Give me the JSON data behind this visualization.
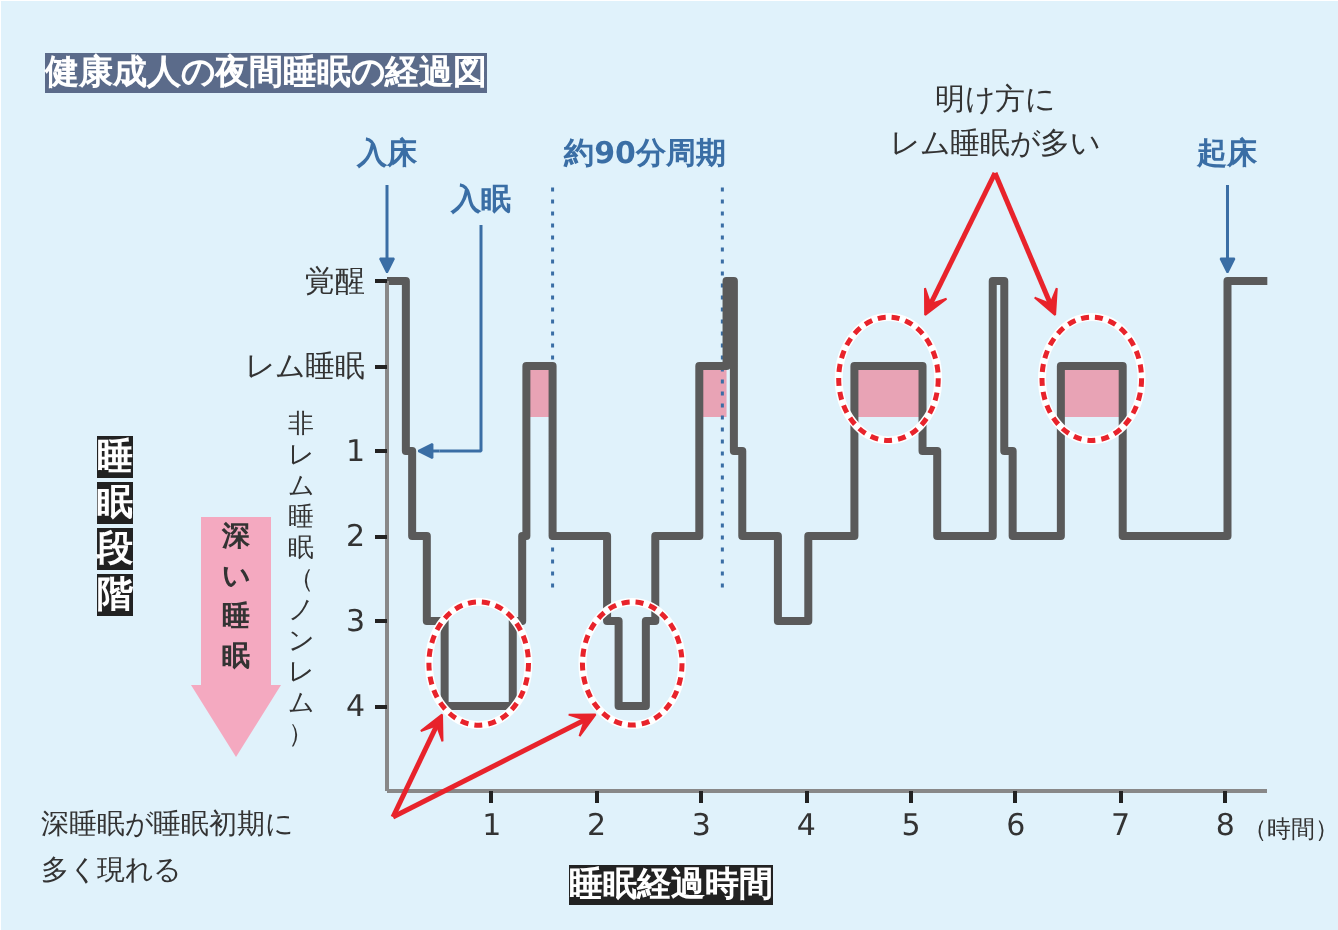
{
  "chart_data": {
    "type": "step",
    "title": "健康成人の夜間睡眠の経過図",
    "xlabel": "睡眠経過時間",
    "ylabel": "睡眠段階",
    "x": [
      0,
      0.18,
      0.24,
      0.38,
      0.55,
      1.2,
      1.29,
      1.33,
      1.58,
      2.1,
      2.21,
      2.47,
      2.56,
      2.98,
      3.24,
      3.31,
      3.39,
      3.73,
      4.02,
      4.46,
      5.11,
      5.25,
      5.78,
      5.89,
      5.97,
      6.43,
      7.02,
      8.02,
      8.4
    ],
    "series": [
      {
        "color": "#5a5a5a",
        "values": [
          -1,
          1,
          2,
          3,
          4,
          3,
          2,
          0,
          2,
          3,
          4,
          3,
          2,
          0,
          -1,
          1,
          2,
          3,
          2,
          0,
          1,
          2,
          -1,
          1,
          2,
          0,
          2,
          -1,
          -1
        ]
      }
    ],
    "xlim": [
      0,
      8.4
    ],
    "xticks": [
      1,
      2,
      3,
      4,
      5,
      6,
      7,
      8
    ],
    "ylim": [
      5,
      -1
    ],
    "yticks": [
      {
        "value": -1,
        "label": "覚醒"
      },
      {
        "value": 0,
        "label": "レム睡眠"
      },
      1,
      2,
      3,
      4
    ],
    "grid": false,
    "line_style": "solid",
    "ref_lines": [
      {
        "axis": "x",
        "value": 1.58,
        "color": "#3a6ea5",
        "line_style": "dotted"
      },
      {
        "axis": "x",
        "value": 3.2,
        "color": "#3a6ea5",
        "line_style": "dotted"
      }
    ],
    "bands": [
      {
        "axis": "x",
        "from": 1.33,
        "to": 1.58,
        "color": "#e8a3b5"
      },
      {
        "axis": "x",
        "from": 2.98,
        "to": 3.24,
        "color": "#e8a3b5"
      },
      {
        "axis": "x",
        "from": 4.46,
        "to": 5.11,
        "color": "#e8a3b5"
      },
      {
        "axis": "x",
        "from": 6.43,
        "to": 7.02,
        "color": "#e8a3b5"
      }
    ],
    "annotations": [
      {
        "text": "入床",
        "x": 0,
        "y": -1
      },
      "入眠",
      {
        "text": "起床",
        "x": 8.02,
        "y": -1
      },
      "約90分周期",
      "明け方にレム睡眠が多い",
      "深睡眠が睡眠初期に多く現れる",
      "深い睡眠",
      "非レム睡眠（ノンレム）",
      "（時間）"
    ]
  }
}
